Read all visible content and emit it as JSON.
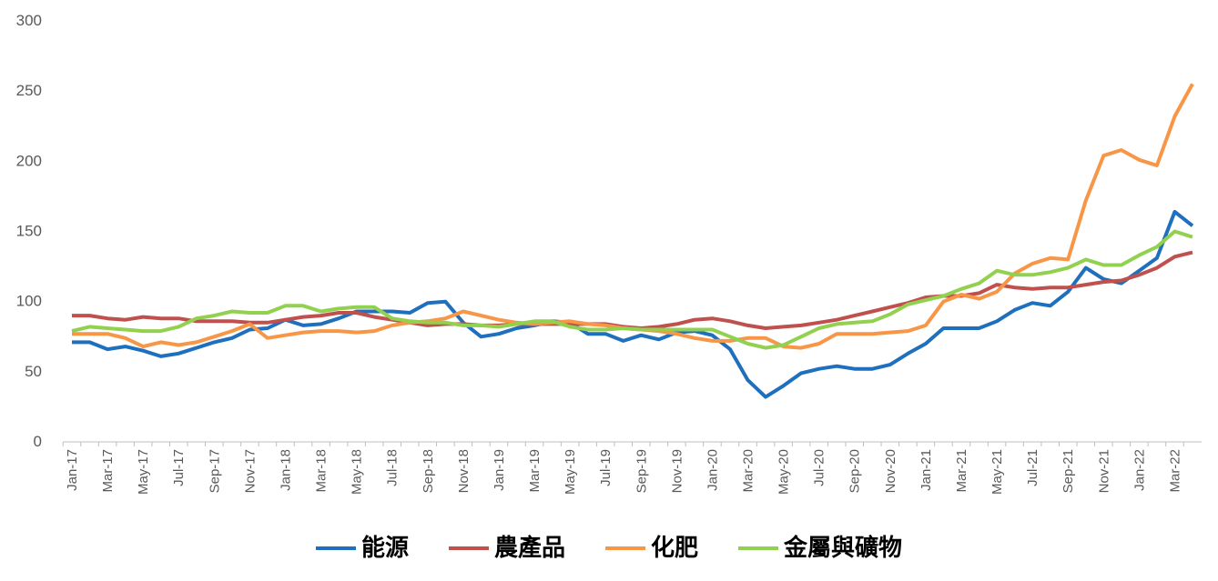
{
  "chart_data": {
    "type": "line",
    "categories": [
      "Jan-17",
      null,
      "Mar-17",
      null,
      "May-17",
      null,
      "Jul-17",
      null,
      "Sep-17",
      null,
      "Nov-17",
      null,
      "Jan-18",
      null,
      "Mar-18",
      null,
      "May-18",
      null,
      "Jul-18",
      null,
      "Sep-18",
      null,
      "Nov-18",
      null,
      "Jan-19",
      null,
      "Mar-19",
      null,
      "May-19",
      null,
      "Jul-19",
      null,
      "Sep-19",
      null,
      "Nov-19",
      null,
      "Jan-20",
      null,
      "Mar-20",
      null,
      "May-20",
      null,
      "Jul-20",
      null,
      "Sep-20",
      null,
      "Nov-20",
      null,
      "Jan-21",
      null,
      "Mar-21",
      null,
      "May-21",
      null,
      "Jul-21",
      null,
      "Sep-21",
      null,
      "Nov-21",
      null,
      "Jan-22",
      null,
      "Mar-22",
      null
    ],
    "series": [
      {
        "name": "能源",
        "color": "#1f6fbf",
        "values": [
          71,
          71,
          66,
          68,
          65,
          61,
          63,
          67,
          71,
          74,
          80,
          81,
          87,
          83,
          84,
          88,
          93,
          93,
          93,
          92,
          99,
          100,
          85,
          75,
          77,
          81,
          83,
          86,
          85,
          77,
          77,
          72,
          76,
          73,
          78,
          79,
          76,
          66,
          44,
          32,
          40,
          49,
          52,
          54,
          52,
          52,
          55,
          63,
          70,
          81,
          81,
          81,
          86,
          94,
          99,
          97,
          107,
          124,
          116,
          113,
          122,
          131,
          164,
          154
        ]
      },
      {
        "name": "農產品",
        "color": "#c0504d",
        "values": [
          90,
          90,
          88,
          87,
          89,
          88,
          88,
          86,
          86,
          86,
          85,
          85,
          87,
          89,
          90,
          92,
          92,
          89,
          87,
          85,
          83,
          84,
          84,
          83,
          83,
          84,
          84,
          84,
          84,
          84,
          84,
          82,
          81,
          82,
          84,
          87,
          88,
          86,
          83,
          81,
          82,
          83,
          85,
          87,
          90,
          93,
          96,
          99,
          103,
          104,
          104,
          106,
          112,
          110,
          109,
          110,
          110,
          112,
          114,
          115,
          119,
          124,
          132,
          135
        ]
      },
      {
        "name": "化肥",
        "color": "#f79646",
        "values": [
          77,
          77,
          77,
          74,
          68,
          71,
          69,
          71,
          75,
          79,
          84,
          74,
          76,
          78,
          79,
          79,
          78,
          79,
          83,
          85,
          86,
          88,
          93,
          90,
          87,
          85,
          84,
          85,
          86,
          84,
          83,
          81,
          80,
          79,
          77,
          74,
          72,
          72,
          74,
          74,
          68,
          67,
          70,
          77,
          77,
          77,
          78,
          79,
          83,
          100,
          105,
          102,
          107,
          120,
          127,
          131,
          130,
          172,
          204,
          208,
          201,
          197,
          232,
          255
        ]
      },
      {
        "name": "金屬與礦物",
        "color": "#92d050",
        "values": [
          79,
          82,
          81,
          80,
          79,
          79,
          82,
          88,
          90,
          93,
          92,
          92,
          97,
          97,
          93,
          95,
          96,
          96,
          88,
          86,
          85,
          85,
          83,
          83,
          82,
          84,
          86,
          86,
          82,
          80,
          80,
          81,
          80,
          80,
          80,
          80,
          80,
          75,
          70,
          67,
          69,
          75,
          81,
          84,
          85,
          86,
          91,
          98,
          101,
          104,
          109,
          113,
          122,
          119,
          119,
          121,
          124,
          130,
          126,
          126,
          133,
          139,
          150,
          146
        ]
      }
    ],
    "ylim": [
      0,
      300
    ],
    "yticks": [
      0,
      50,
      100,
      150,
      200,
      250,
      300
    ],
    "grid": false,
    "legend": "bottom"
  }
}
